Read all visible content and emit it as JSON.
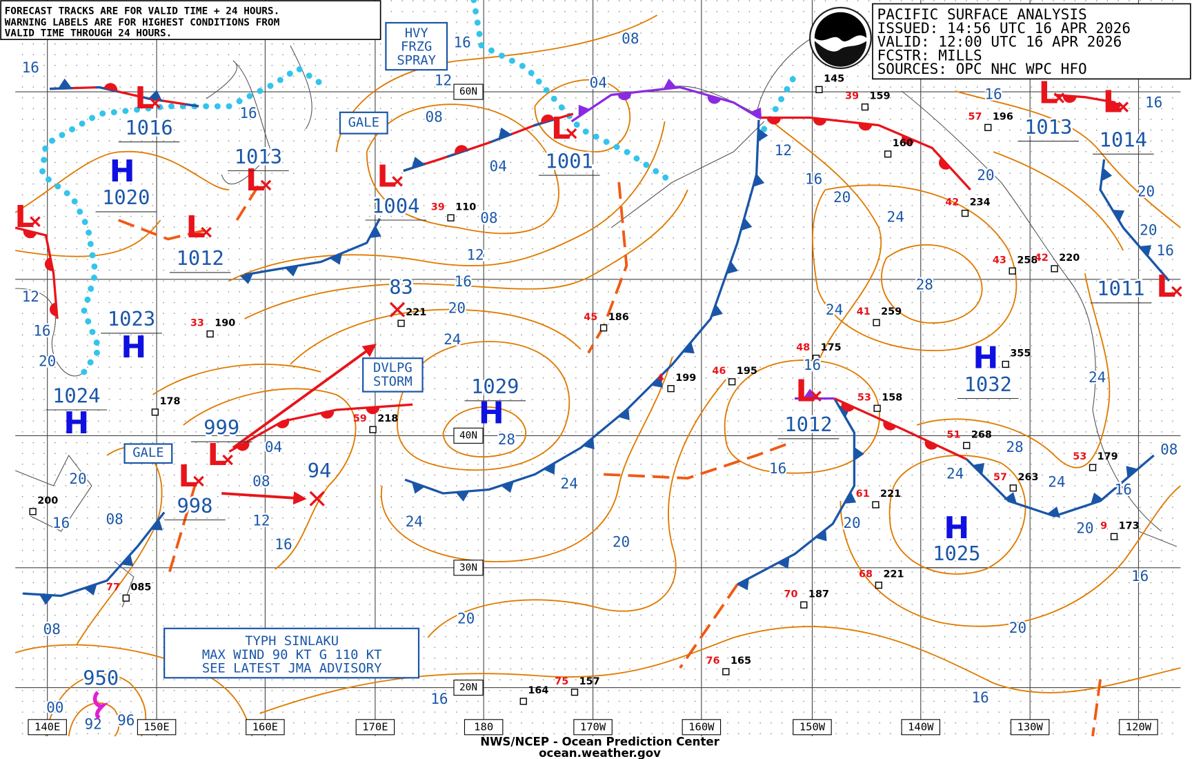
{
  "notice": [
    "FORECAST TRACKS ARE FOR VALID TIME + 24 HOURS.",
    "WARNING LABELS ARE FOR HIGHEST CONDITIONS FROM",
    "VALID TIME THROUGH 24 HOURS."
  ],
  "header": {
    "lines": [
      "PACIFIC SURFACE ANALYSIS",
      "ISSUED: 14:56 UTC 16 APR 2026",
      "VALID:  12:00 UTC 16 APR 2026",
      "FCSTR:  MILLS",
      "SOURCES: OPC NHC WPC HFO"
    ]
  },
  "warnings": [
    [
      "HVY",
      "FRZG",
      "SPRAY"
    ],
    [
      "GALE"
    ],
    [
      "DVLPG",
      "STORM"
    ],
    [
      "GALE"
    ]
  ],
  "typhoon": {
    "lines": [
      "TYPH SINLAKU",
      "MAX WIND 90 KT G 110 KT",
      "SEE LATEST JMA ADVISORY"
    ],
    "pressure": 950
  },
  "centers": [
    {
      "symbol": "H",
      "pressure": 1020
    },
    {
      "symbol": "L",
      "pressure": 1016
    },
    {
      "symbol": "L",
      "pressure": 1013
    },
    {
      "symbol": "L",
      "pressure": 1012
    },
    {
      "symbol": "H",
      "pressure": 1023
    },
    {
      "symbol": "H",
      "pressure": 1024
    },
    {
      "symbol": "L",
      "pressure": 1004
    },
    {
      "symbol": "L",
      "pressure": 1001
    },
    {
      "symbol": "L",
      "pressure": 999
    },
    {
      "symbol": "L",
      "pressure": 998
    },
    {
      "symbol": "H",
      "pressure": 1029
    },
    {
      "symbol": "L",
      "pressure": 1012
    },
    {
      "symbol": "H",
      "pressure": 1032
    },
    {
      "symbol": "H",
      "pressure": 1025
    },
    {
      "symbol": "L",
      "pressure": 1013
    },
    {
      "symbol": "L",
      "pressure": 1014
    },
    {
      "symbol": "L",
      "pressure": 1011
    },
    {
      "symbol": "L"
    }
  ],
  "forecast_positions": [
    83,
    94
  ],
  "isobar_labels": [
    "16",
    "16",
    "08",
    "12",
    "08",
    "16",
    "04",
    "04",
    "08",
    "12",
    "16",
    "20",
    "24",
    "12",
    "16",
    "20",
    "20",
    "16",
    "08",
    "08",
    "00",
    "92",
    "96",
    "04",
    "08",
    "12",
    "16",
    "28",
    "24",
    "24",
    "20",
    "20",
    "16",
    "16",
    "20",
    "16",
    "20",
    "16",
    "24",
    "24",
    "28",
    "24",
    "16",
    "16",
    "20",
    "24",
    "28",
    "24",
    "20",
    "16",
    "12",
    "20",
    "16",
    "16",
    "20",
    "20",
    "16",
    "08"
  ],
  "latitude_labels": [
    "60N",
    "40N",
    "30N",
    "20N"
  ],
  "longitude_labels": [
    "140E",
    "150E",
    "160E",
    "170E",
    "180",
    "170W",
    "160W",
    "150W",
    "140W",
    "130W",
    "120W"
  ],
  "stations": [
    {
      "temp": "39",
      "pressure": "110"
    },
    {
      "temp": "33",
      "pressure": "190"
    },
    {
      "pressure": "178"
    },
    {
      "pressure": "221"
    },
    {
      "temp": "59",
      "pressure": "218"
    },
    {
      "temp": "45",
      "pressure": "186"
    },
    {
      "temp": "4",
      "pressure": "199"
    },
    {
      "temp": "46",
      "pressure": "195"
    },
    {
      "temp": "48",
      "pressure": "175"
    },
    {
      "temp": "53",
      "pressure": "158"
    },
    {
      "temp": "51",
      "pressure": "268"
    },
    {
      "temp": "57",
      "pressure": "263"
    },
    {
      "temp": "61",
      "pressure": "221"
    },
    {
      "temp": "68",
      "pressure": "221"
    },
    {
      "temp": "70",
      "pressure": "187"
    },
    {
      "temp": "76",
      "pressure": "165"
    },
    {
      "temp": "75",
      "pressure": "157"
    },
    {
      "pressure": "164"
    },
    {
      "temp": "77",
      "pressure": "085"
    },
    {
      "pressure": "145"
    },
    {
      "temp": "39",
      "pressure": "159"
    },
    {
      "pressure": "160"
    },
    {
      "temp": "42",
      "pressure": "234"
    },
    {
      "temp": "43",
      "pressure": "258"
    },
    {
      "temp": "42",
      "pressure": "220"
    },
    {
      "temp": "41",
      "pressure": "259"
    },
    {
      "temp": "53",
      "pressure": "179"
    },
    {
      "temp": "9",
      "pressure": "173"
    },
    {
      "temp": "57",
      "pressure": "196"
    },
    {
      "pressure": "355"
    },
    {
      "pressure": "200"
    }
  ],
  "footer": [
    "NWS/NCEP - Ocean Prediction Center",
    "ocean.weather.gov"
  ]
}
